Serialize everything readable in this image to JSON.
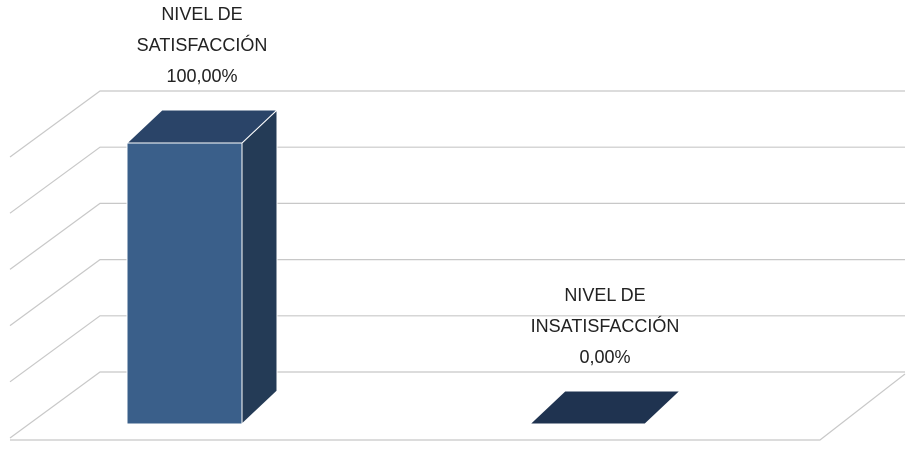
{
  "chart_data": {
    "type": "bar3d",
    "categories": [
      "NIVEL DE SATISFACCIÓN",
      "NIVEL DE INSATISFACCIÓN"
    ],
    "values": [
      100,
      0
    ],
    "value_labels": [
      "100,00%",
      "0,00%"
    ],
    "color": "#3a5f8a",
    "ylim": [
      0,
      100
    ],
    "yticks": [
      0,
      20,
      40,
      60,
      80,
      100
    ],
    "grid": true
  }
}
